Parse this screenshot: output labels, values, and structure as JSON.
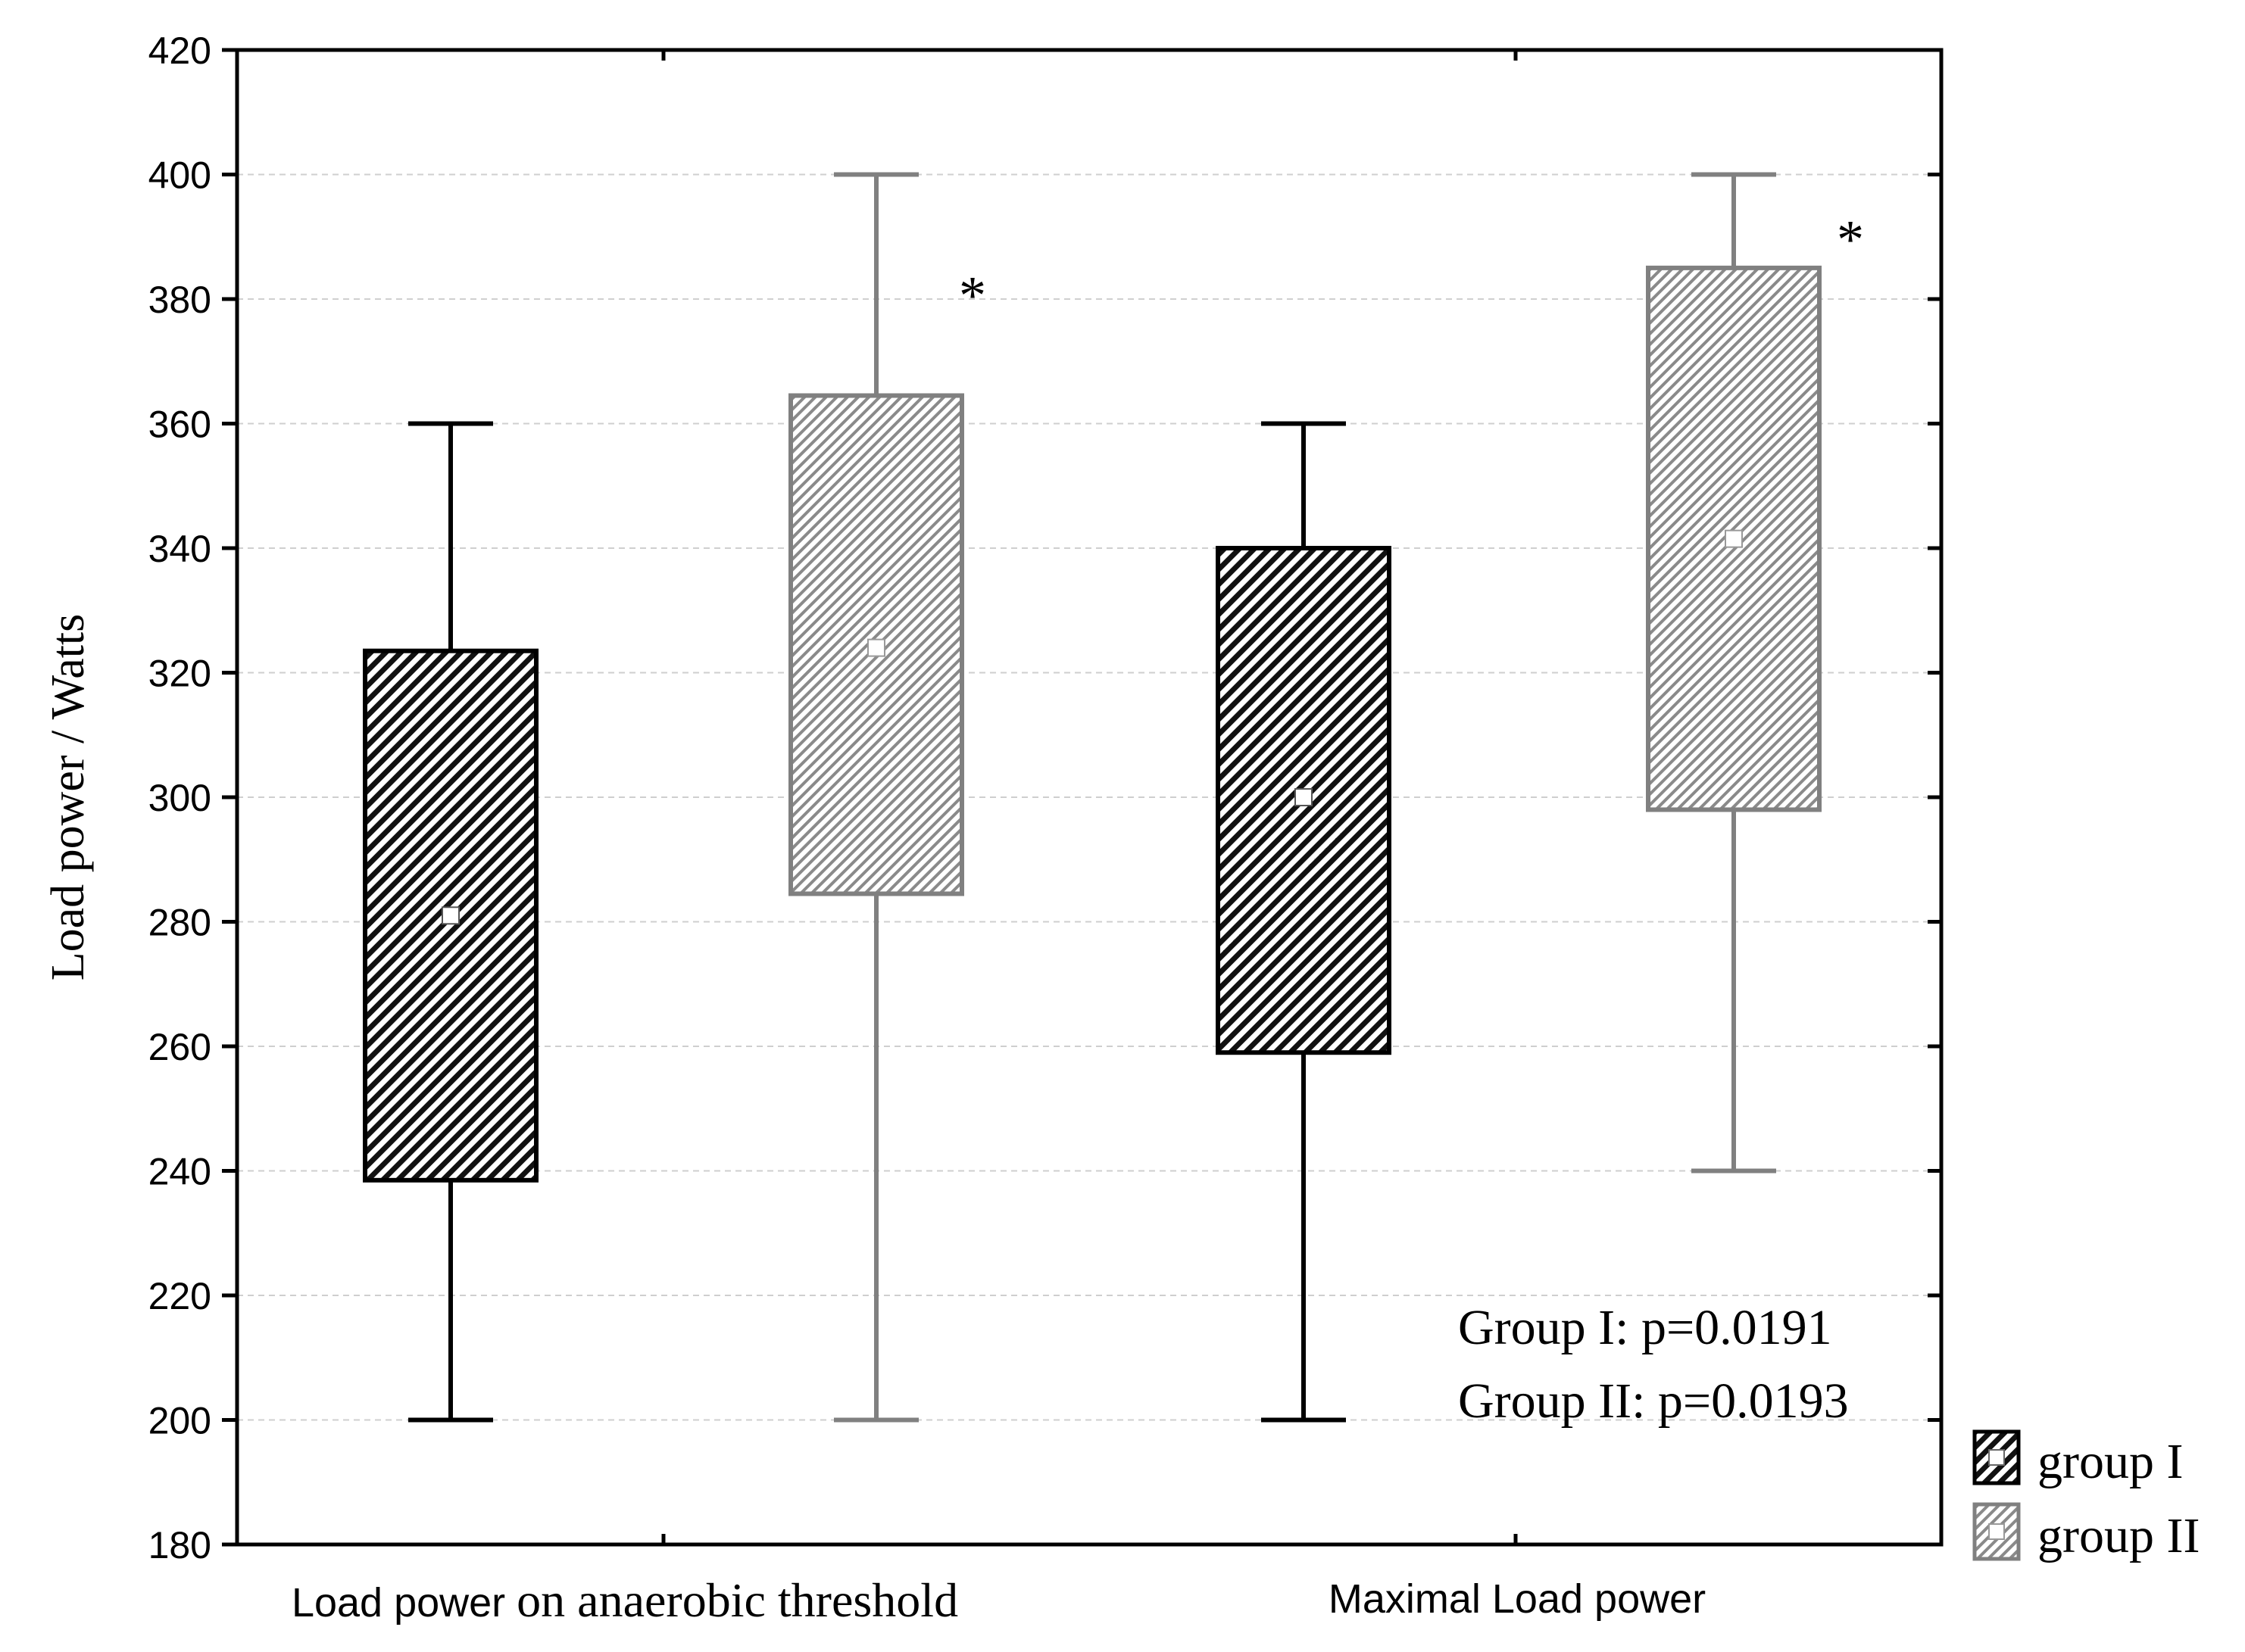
{
  "chart_data": {
    "type": "box",
    "ylabel": "Load power / Watts",
    "xlabel": "",
    "ylim": [
      180,
      420
    ],
    "yticks": [
      180,
      200,
      220,
      240,
      260,
      280,
      300,
      320,
      340,
      360,
      380,
      400,
      420
    ],
    "grid": "horizontal dashed",
    "categories": [
      "Load power on anaerobic threshold",
      "Maximal Load power"
    ],
    "series": [
      {
        "name": "group I",
        "color": "#000000",
        "boxes": [
          {
            "category": "Load power on anaerobic threshold",
            "min": 200,
            "q1": 238.5,
            "median": 281,
            "q3": 323.5,
            "max": 360
          },
          {
            "category": "Maximal Load power",
            "min": 200,
            "q1": 259,
            "median": 300,
            "q3": 340,
            "max": 360
          }
        ]
      },
      {
        "name": "group II",
        "color": "#808080",
        "boxes": [
          {
            "category": "Load power on anaerobic threshold",
            "min": 200,
            "q1": 284.5,
            "median": 324,
            "q3": 364.5,
            "max": 400
          },
          {
            "category": "Maximal Load power",
            "min": 240,
            "q1": 298,
            "median": 341.5,
            "q3": 385,
            "max": 400
          }
        ]
      }
    ],
    "annotations": {
      "stars": [
        {
          "category": "Load power on anaerobic threshold",
          "y": 382,
          "text": "*"
        },
        {
          "category": "Maximal Load power",
          "y": 391,
          "text": "*"
        }
      ],
      "pvalues": [
        "Group I: p=0.0191",
        "Group II: p=0.0193"
      ]
    },
    "legend": {
      "position": "bottom-right outside",
      "entries": [
        "group I",
        "group II"
      ]
    }
  }
}
